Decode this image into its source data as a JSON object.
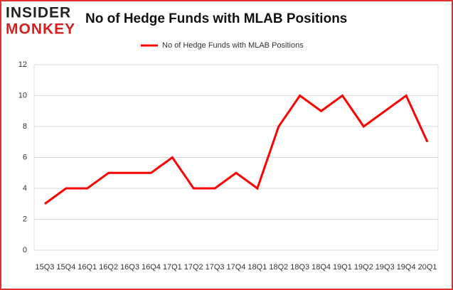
{
  "logo": {
    "line1": "INSIDER",
    "line2": "MONKEY"
  },
  "chart_data": {
    "type": "line",
    "title": "No of Hedge Funds with MLAB Positions",
    "categories": [
      "15Q3",
      "15Q4",
      "16Q1",
      "16Q2",
      "16Q3",
      "16Q4",
      "17Q1",
      "17Q2",
      "17Q3",
      "17Q4",
      "18Q1",
      "18Q2",
      "18Q3",
      "18Q4",
      "19Q1",
      "19Q2",
      "19Q3",
      "19Q4",
      "20Q1"
    ],
    "series": [
      {
        "name": "No of Hedge Funds with MLAB Positions",
        "color": "#ff0000",
        "values": [
          3,
          4,
          4,
          5,
          5,
          5,
          6,
          4,
          4,
          5,
          4,
          8,
          10,
          9,
          10,
          8,
          9,
          10,
          7
        ]
      }
    ],
    "ylim": [
      0,
      12
    ],
    "yticks": [
      0,
      2,
      4,
      6,
      8,
      10,
      12
    ],
    "grid": true,
    "legend": "top"
  }
}
